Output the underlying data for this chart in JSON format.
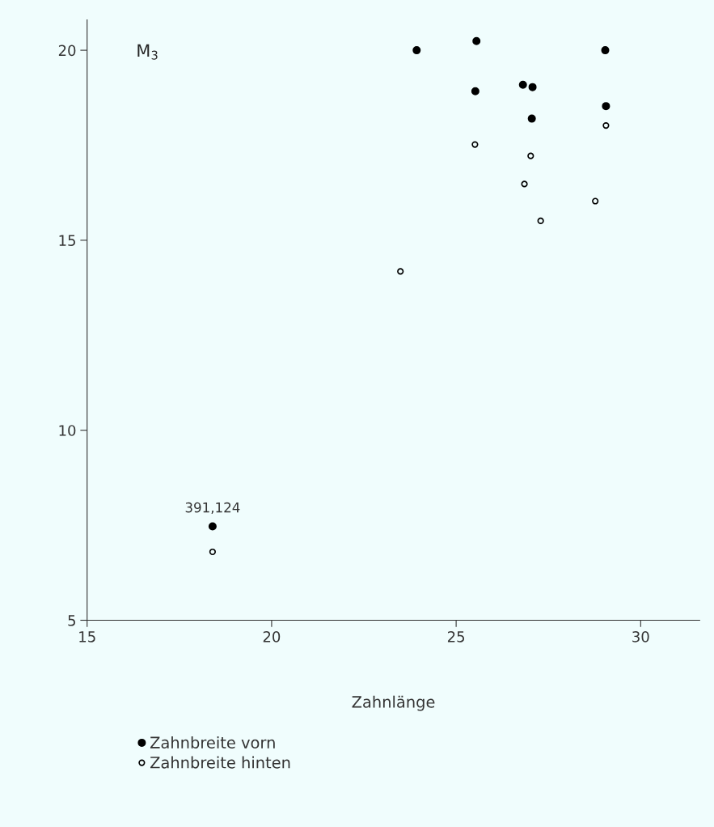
{
  "chart_data": {
    "type": "scatter",
    "title": "M$_{3}$",
    "xlabel": "Zahnlänge",
    "xlim": [
      15,
      31.6
    ],
    "ylim": [
      5,
      20.8
    ],
    "xticks": [
      15,
      20,
      25,
      30
    ],
    "yticks": [
      5,
      10,
      15,
      20
    ],
    "grid": false,
    "legend": "bottom left",
    "annotations": [
      {
        "text": "391,124",
        "x": 18.4,
        "y": 7.47
      }
    ],
    "series": [
      {
        "name": "Zahnbreite vorn",
        "color": "#000000",
        "marker": "circle",
        "x": [
          23.93,
          25.55,
          29.04,
          25.52,
          26.81,
          27.07,
          29.06,
          27.05,
          18.4
        ],
        "values": [
          20.0,
          20.24,
          20.0,
          18.92,
          19.09,
          19.03,
          18.53,
          18.2,
          7.47
        ]
      },
      {
        "name": "Zahnbreite hinten",
        "color": "#000000",
        "marker": "hollow circle",
        "x": [
          29.06,
          25.51,
          27.02,
          26.85,
          28.77,
          27.29,
          23.49,
          18.4
        ],
        "values": [
          18.02,
          17.52,
          17.22,
          16.48,
          16.03,
          15.51,
          14.18,
          6.8
        ]
      }
    ]
  }
}
